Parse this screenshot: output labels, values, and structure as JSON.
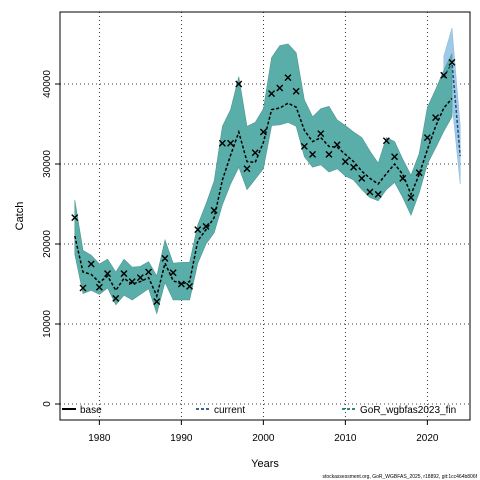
{
  "chart_data": {
    "type": "line",
    "xlabel": "Years",
    "ylabel": "Catch",
    "xlim": [
      1975.2,
      2025.2
    ],
    "ylim": [
      -2000,
      49000
    ],
    "xticks": [
      1980,
      1990,
      2000,
      2010,
      2020
    ],
    "yticks": [
      0,
      10000,
      20000,
      30000,
      40000
    ],
    "xtick_labels": [
      "1980",
      "1990",
      "2000",
      "2010",
      "2020"
    ],
    "ytick_labels": [
      "0",
      "10000",
      "20000",
      "30000",
      "40000"
    ],
    "grid": true,
    "legend_position": "bottom",
    "legend": [
      {
        "label": "base",
        "style": "solid",
        "color": "#000000"
      },
      {
        "label": "current",
        "style": "dashed",
        "color": "#1f4e79"
      },
      {
        "label": "GoR_wgbfas2023_fin",
        "style": "dashed",
        "color": "#0d7a6b"
      }
    ],
    "colors": {
      "band_main": "#5aaea9",
      "band_current": "#9ec9e8",
      "line_current": "#1f4e79",
      "line_main": "#0d7a6b",
      "observed": "#000000"
    },
    "series": [
      {
        "name": "GoR_wgbfas2023_fin",
        "x": [
          1977,
          1978,
          1979,
          1980,
          1981,
          1982,
          1983,
          1984,
          1985,
          1986,
          1987,
          1988,
          1989,
          1990,
          1991,
          1992,
          1993,
          1994,
          1995,
          1996,
          1997,
          1998,
          1999,
          2000,
          2001,
          2002,
          2003,
          2004,
          2005,
          2006,
          2007,
          2008,
          2009,
          2010,
          2011,
          2012,
          2013,
          2014,
          2015,
          2016,
          2017,
          2018,
          2019,
          2020,
          2021,
          2022,
          2023
        ],
        "mean": [
          21000,
          16500,
          16200,
          15200,
          16000,
          14200,
          15700,
          15000,
          15300,
          15800,
          13500,
          17600,
          15400,
          15000,
          15300,
          20400,
          21800,
          23300,
          28000,
          31100,
          34000,
          30300,
          30200,
          32700,
          36800,
          37000,
          37600,
          37100,
          34200,
          32800,
          33300,
          32200,
          32100,
          31200,
          30300,
          29100,
          28200,
          27500,
          28800,
          30000,
          28700,
          26200,
          28700,
          31800,
          34700,
          37000,
          38200
        ],
        "lower": [
          18700,
          13800,
          14200,
          13700,
          14500,
          12400,
          13600,
          13000,
          13700,
          14400,
          11300,
          15200,
          13000,
          13000,
          13000,
          17600,
          20000,
          21400,
          24900,
          27500,
          29600,
          26800,
          28100,
          29400,
          34800,
          34900,
          35200,
          34700,
          30900,
          29600,
          29900,
          29000,
          29400,
          28500,
          28000,
          26800,
          25800,
          25400,
          26800,
          27700,
          25800,
          23600,
          26400,
          30000,
          32000,
          34100,
          35900
        ],
        "upper": [
          25500,
          19200,
          18600,
          17500,
          18100,
          16500,
          18100,
          17100,
          17200,
          17800,
          16000,
          20500,
          17600,
          17700,
          17700,
          22400,
          25000,
          27900,
          34700,
          36800,
          40900,
          34700,
          35200,
          36900,
          43300,
          44800,
          45000,
          43900,
          38000,
          35900,
          36900,
          37200,
          35500,
          34800,
          34000,
          33300,
          31600,
          30100,
          33300,
          32800,
          30600,
          28600,
          31300,
          37100,
          39300,
          41700,
          43800
        ]
      },
      {
        "name": "current",
        "x": [
          2022,
          2023,
          2024
        ],
        "mean": [
          40800,
          42700,
          31000
        ],
        "lower": [
          38500,
          37500,
          27500
        ],
        "upper": [
          43500,
          47000,
          34800
        ]
      }
    ],
    "observed": {
      "x": [
        1977,
        1978,
        1979,
        1980,
        1981,
        1982,
        1983,
        1984,
        1985,
        1986,
        1987,
        1988,
        1989,
        1990,
        1991,
        1992,
        1993,
        1994,
        1995,
        1996,
        1997,
        1998,
        1999,
        2000,
        2001,
        2002,
        2003,
        2004,
        2005,
        2006,
        2007,
        2008,
        2009,
        2010,
        2011,
        2012,
        2013,
        2014,
        2015,
        2016,
        2017,
        2018,
        2019,
        2020,
        2021,
        2022,
        2023
      ],
      "y": [
        23300,
        14500,
        17500,
        14600,
        16300,
        13200,
        16300,
        15300,
        15800,
        16500,
        12800,
        18200,
        16400,
        15000,
        14700,
        21800,
        22200,
        24200,
        32600,
        32600,
        40000,
        29400,
        31400,
        34000,
        38800,
        39500,
        40800,
        39100,
        32200,
        31200,
        33800,
        31200,
        32400,
        30300,
        29600,
        28200,
        26500,
        26200,
        32900,
        30900,
        28200,
        25800,
        28900,
        33300,
        35800,
        41100,
        42700
      ]
    }
  },
  "caption": "stockassessment.org, GoR_WGBFAS_2025, r18892, git:1cc464b806f"
}
